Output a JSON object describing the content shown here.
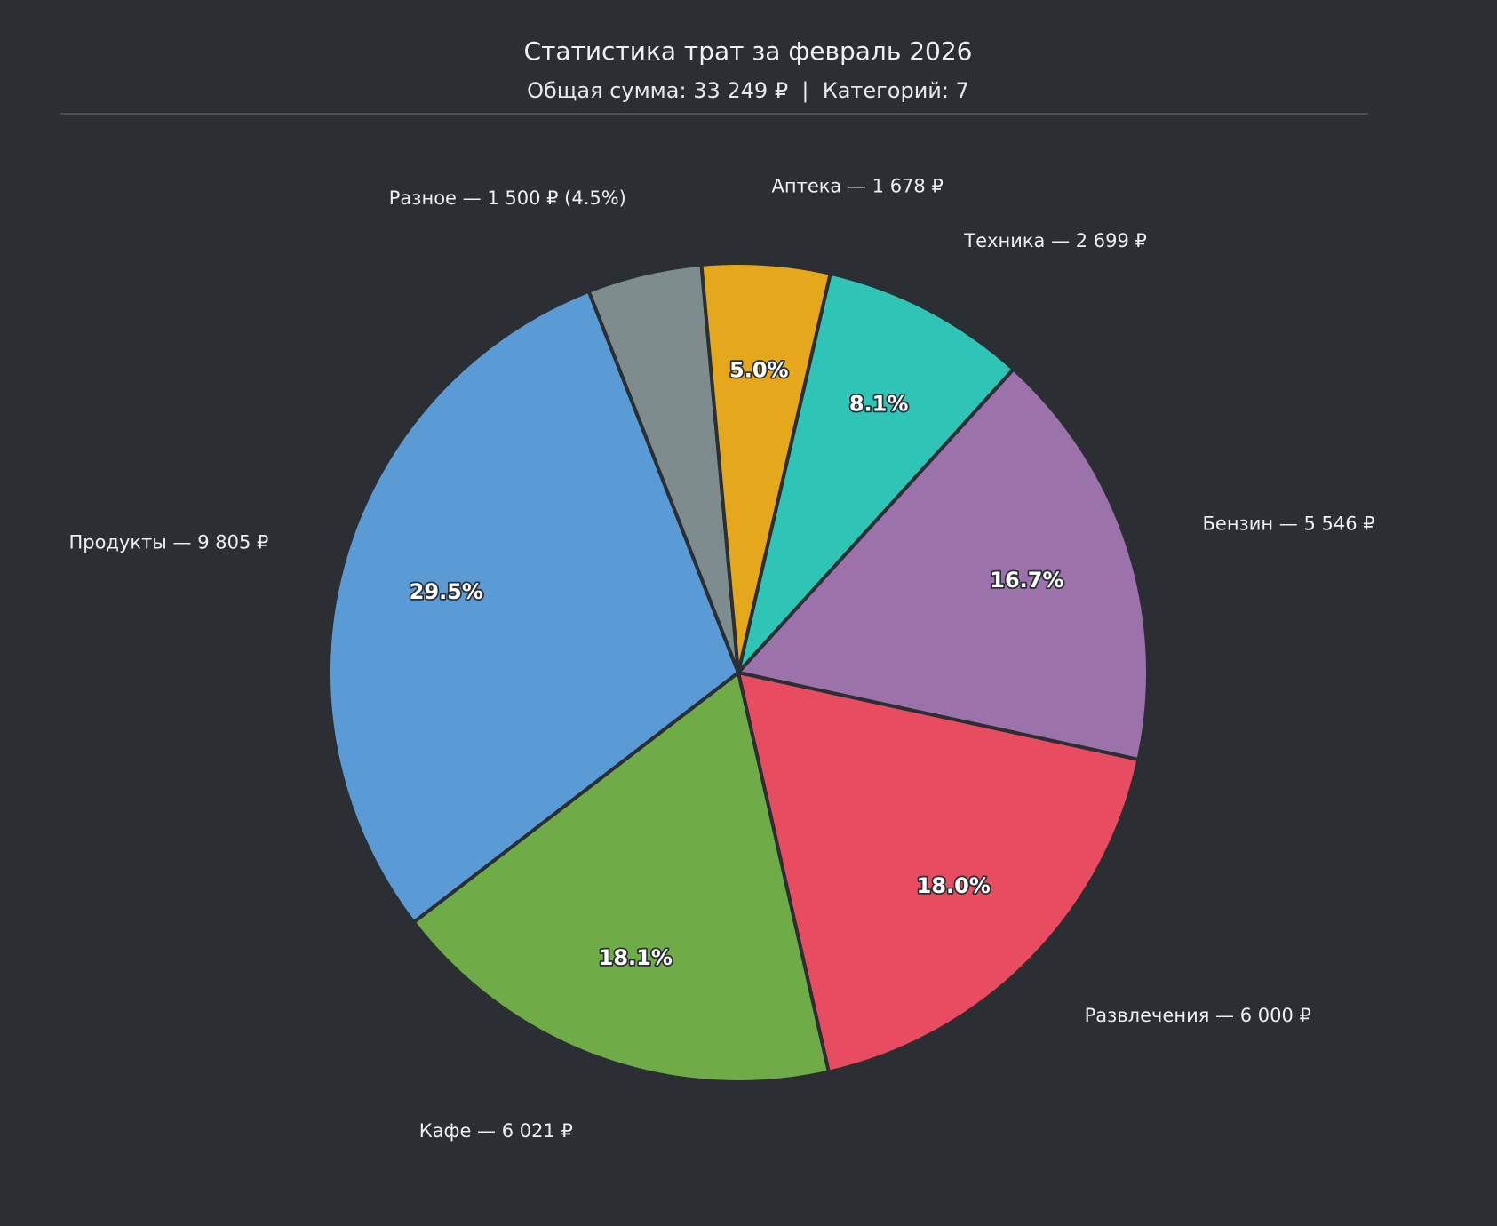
{
  "chart_data": {
    "type": "pie",
    "title": "Статистика трат за февраль 2026",
    "subtitle": "Общая сумма: 33 249 ₽  |  Категорий: 7",
    "start_angle_deg": 77,
    "direction": "clockwise",
    "slices": [
      {
        "id": "tech",
        "category": "Техника",
        "value": 2699,
        "percent_label": "8.1%",
        "outer_label": "Техника — 2 699 ₽",
        "color": "#2ec4b6"
      },
      {
        "id": "fuel",
        "category": "Бензин",
        "value": 5546,
        "percent_label": "16.7%",
        "outer_label": "Бензин — 5 546 ₽",
        "color": "#9b72aa"
      },
      {
        "id": "fun",
        "category": "Развлечения",
        "value": 6000,
        "percent_label": "18.0%",
        "outer_label": "Развлечения — 6 000 ₽",
        "color": "#e84c60"
      },
      {
        "id": "cafe",
        "category": "Кафе",
        "value": 6021,
        "percent_label": "18.1%",
        "outer_label": "Кафе — 6 021 ₽",
        "color": "#6fab47"
      },
      {
        "id": "food",
        "category": "Продукты",
        "value": 9805,
        "percent_label": "29.5%",
        "outer_label": "Продукты — 9 805 ₽",
        "color": "#5b9bd5"
      },
      {
        "id": "misc",
        "category": "Разное",
        "value": 1500,
        "percent_label": "",
        "outer_label": "Разное — 1 500 ₽ (4.5%)",
        "color": "#7f8c8d"
      },
      {
        "id": "pharm",
        "category": "Аптека",
        "value": 1678,
        "percent_label": "5.0%",
        "outer_label": "Аптека — 1 678 ₽",
        "color": "#e5a71b"
      }
    ],
    "background_color": "#2b2e33",
    "divider_color": "#55595f",
    "legend": "none"
  }
}
